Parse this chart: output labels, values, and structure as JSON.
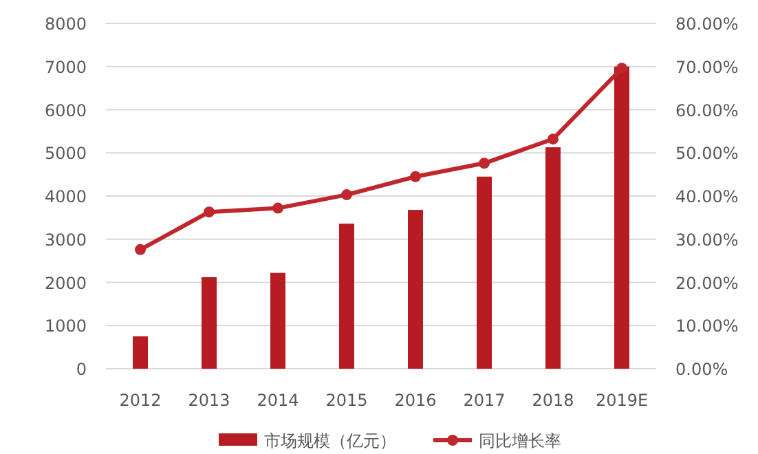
{
  "chart_data": {
    "type": "bar",
    "categories": [
      "2012",
      "2013",
      "2014",
      "2015",
      "2016",
      "2017",
      "2018",
      "2019E"
    ],
    "series": [
      {
        "name": "市场规模（亿元）",
        "color": "#b71c22",
        "values": [
          750,
          2120,
          2220,
          3360,
          3680,
          4450,
          5130,
          7000
        ]
      },
      {
        "name": "同比增长率",
        "type": "line",
        "axis": "y2",
        "color": "#c0272d",
        "marker": "circle",
        "values": [
          27.6,
          36.3,
          37.2,
          40.3,
          44.5,
          47.6,
          53.2,
          69.6
        ]
      }
    ],
    "ylim": [
      0,
      8000
    ],
    "yticks": [
      0,
      1000,
      2000,
      3000,
      4000,
      5000,
      6000,
      7000,
      8000
    ],
    "y2lim": [
      0,
      80
    ],
    "y2ticks": [
      {
        "value": 0,
        "label": "0.00%"
      },
      {
        "value": 10,
        "label": "10.00%"
      },
      {
        "value": 20,
        "label": "20.00%"
      },
      {
        "value": 30,
        "label": "30.00%"
      },
      {
        "value": 40,
        "label": "40.00%"
      },
      {
        "value": 50,
        "label": "50.00%"
      },
      {
        "value": 60,
        "label": "60.00%"
      },
      {
        "value": 70,
        "label": "70.00%"
      },
      {
        "value": 80,
        "label": "80.00%"
      }
    ],
    "grid": "y",
    "legend": "bottom"
  }
}
